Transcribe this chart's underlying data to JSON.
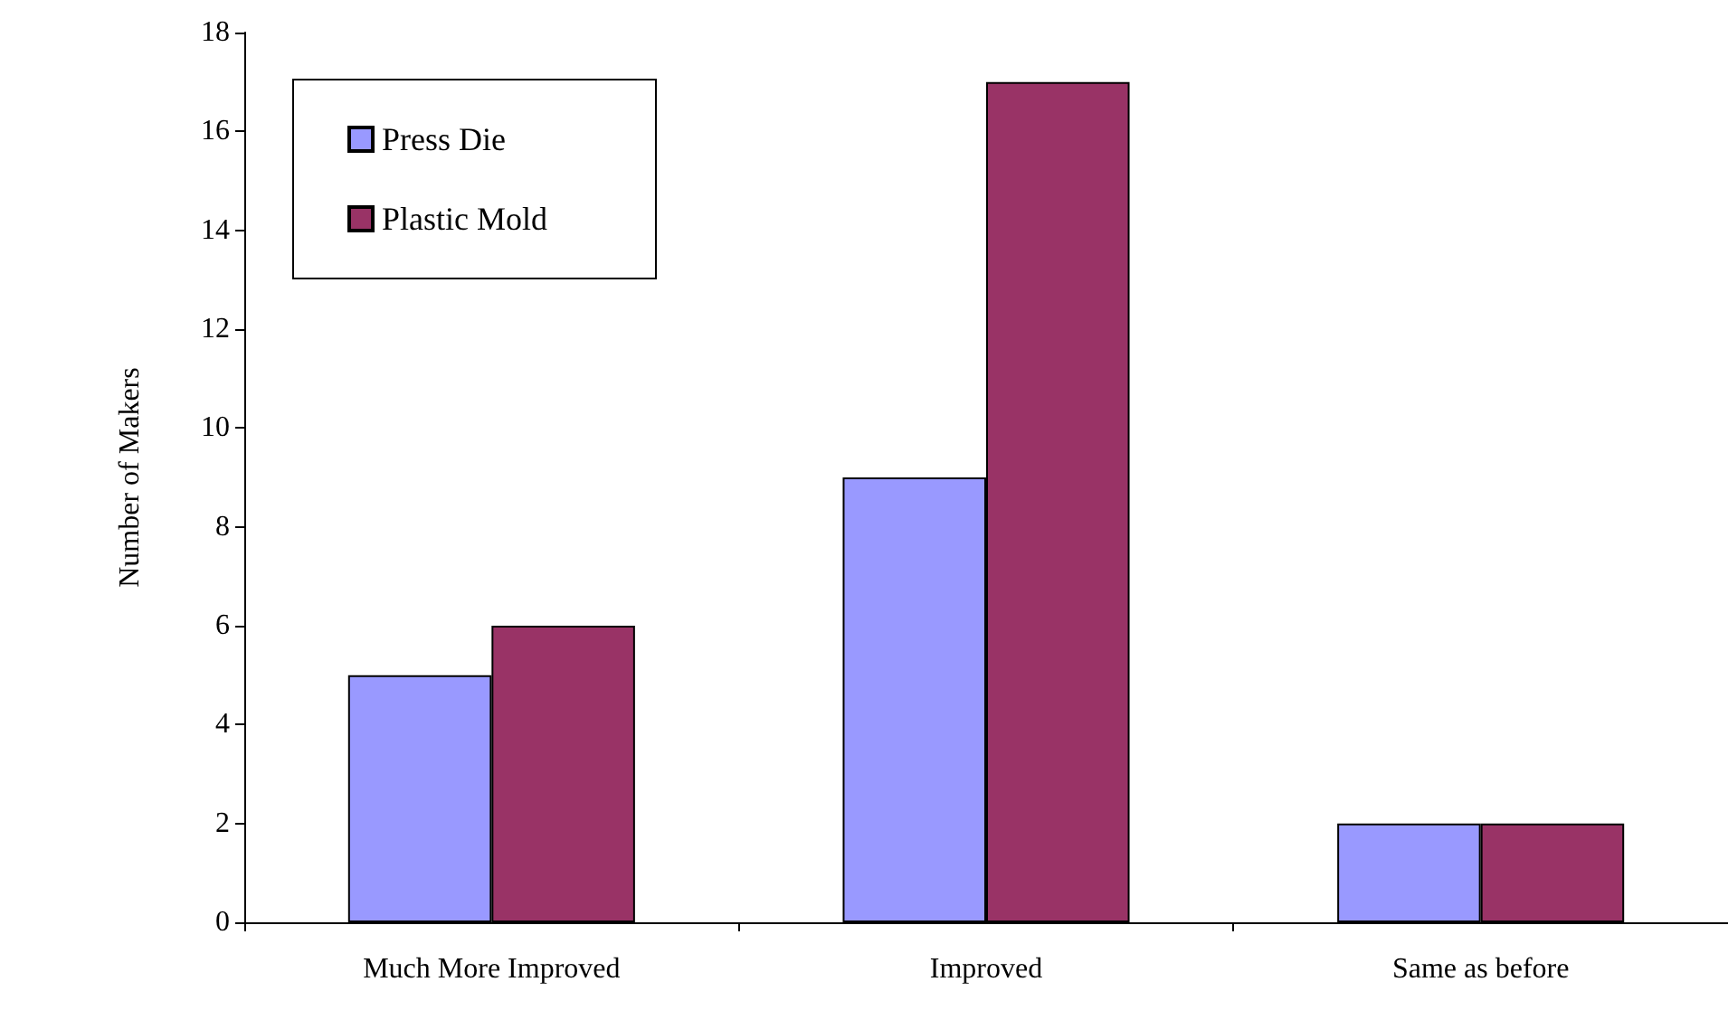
{
  "chart_data": {
    "type": "bar",
    "ylabel": "Number of Makers",
    "categories": [
      "Much More Improved",
      "Improved",
      "Same as before"
    ],
    "series": [
      {
        "name": "Press Die",
        "color": "#9999ff",
        "values": [
          5,
          9,
          2
        ]
      },
      {
        "name": "Plastic Mold",
        "color": "#993366",
        "values": [
          6,
          17,
          2
        ]
      }
    ],
    "ylim": [
      0,
      18
    ],
    "yticks": [
      0,
      2,
      4,
      6,
      8,
      10,
      12,
      14,
      16,
      18
    ],
    "grid": false,
    "legend": "top left"
  }
}
